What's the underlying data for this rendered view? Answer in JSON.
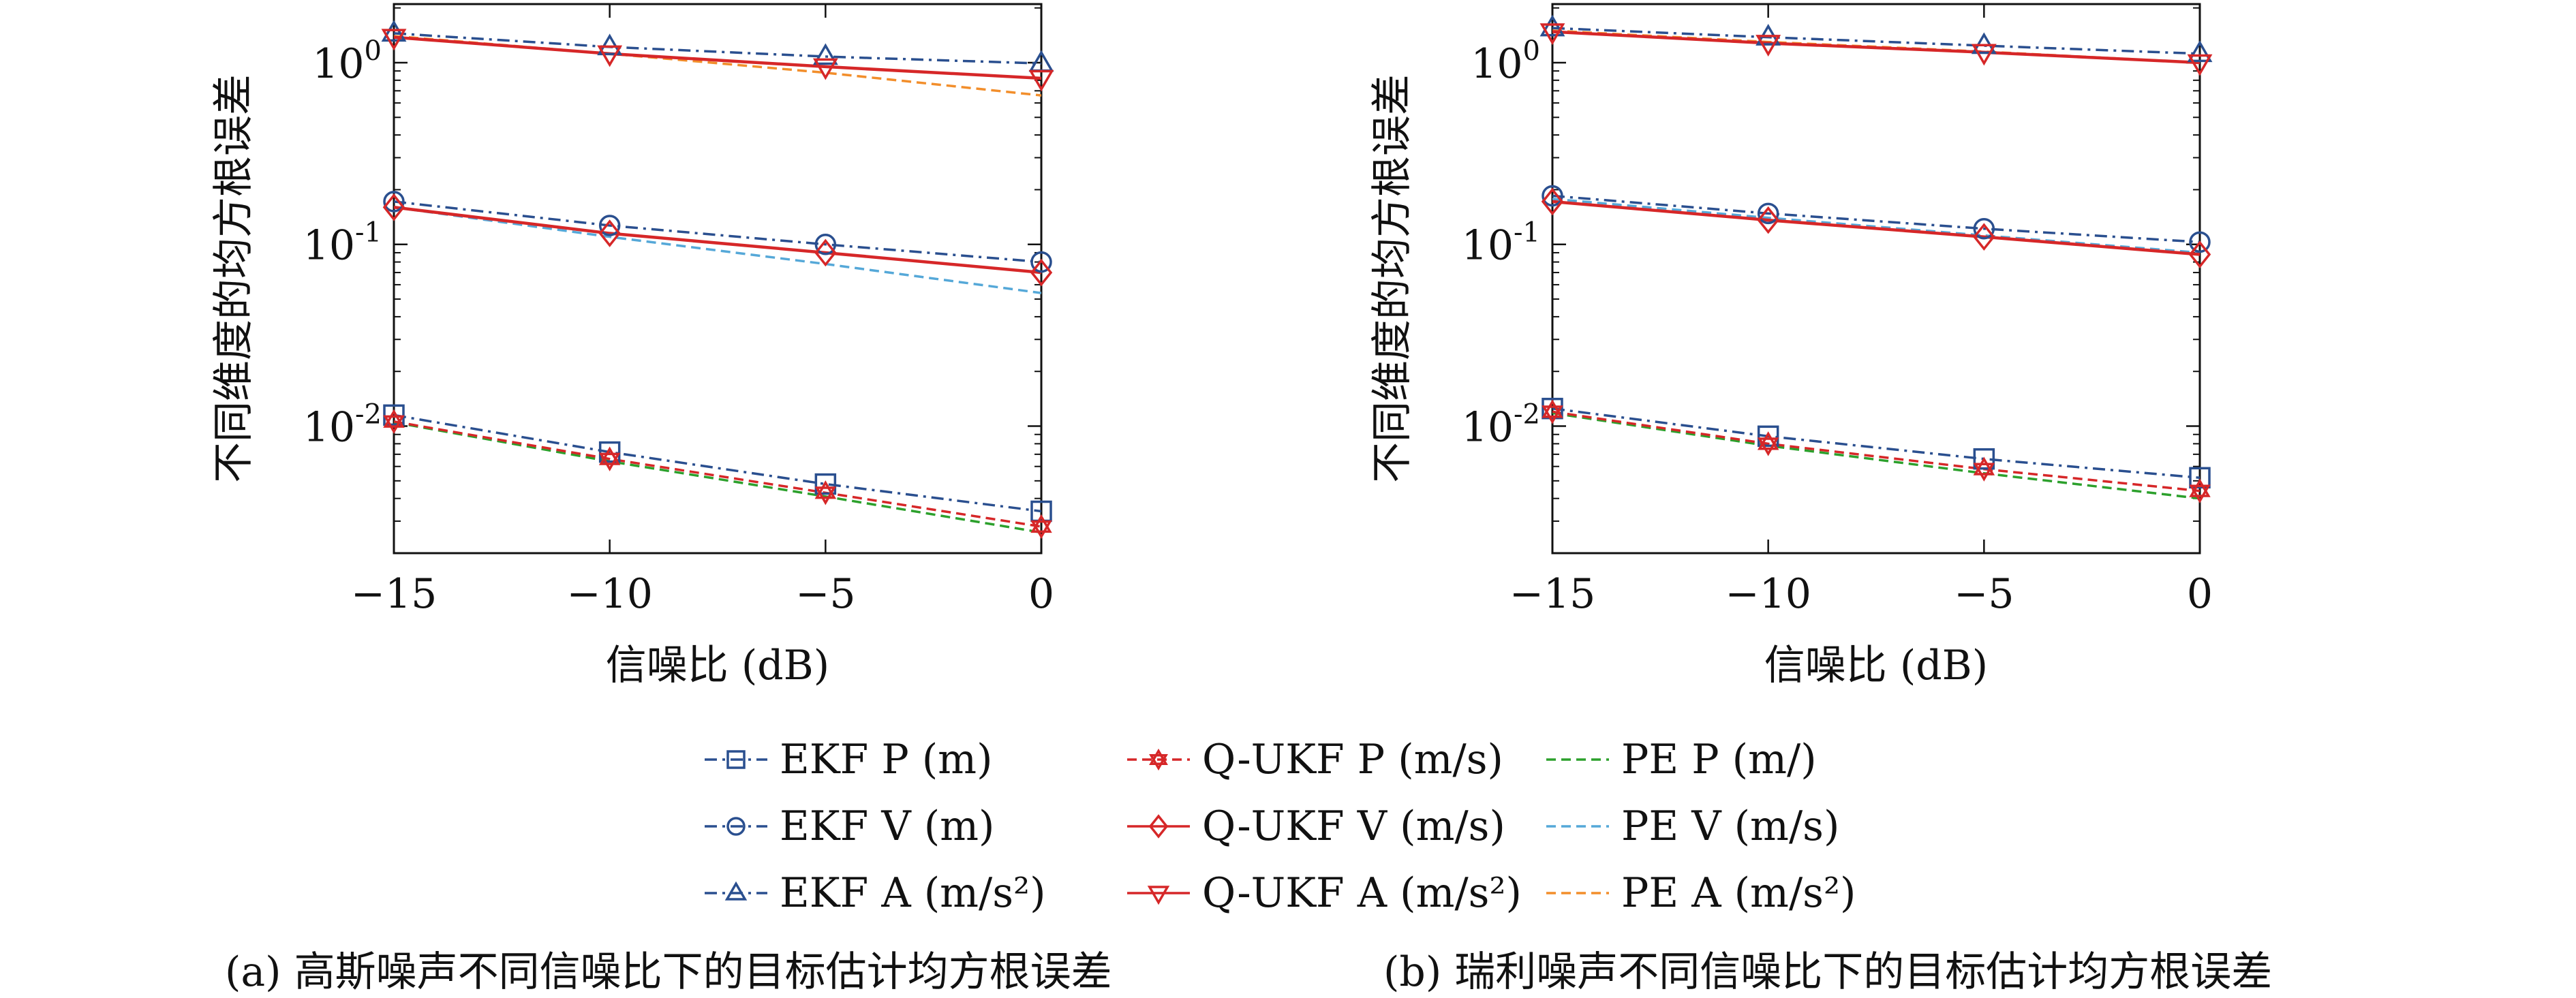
{
  "chart_data": [
    {
      "type": "line",
      "panel": "a",
      "caption": "(a) 高斯噪声不同信噪比下的目标估计均方根误差",
      "xlabel": "信噪比 (dB)",
      "ylabel": "不同维度的均方根误差",
      "yscale": "log",
      "xlim": [
        -15,
        0
      ],
      "ylim": [
        0.002,
        2.1
      ],
      "xticks": [
        -15,
        -10,
        -5,
        0
      ],
      "xtick_labels": [
        "−15",
        "−10",
        "−5",
        "0"
      ],
      "yticks": [
        0.01,
        0.1,
        1
      ],
      "ytick_labels": [
        [
          "10",
          "-2"
        ],
        [
          "10",
          "-1"
        ],
        [
          "10",
          "0"
        ]
      ],
      "grid": false,
      "x": [
        -15,
        -10,
        -5,
        0
      ],
      "series": [
        {
          "name": "EKF P (m)",
          "color": "#2a4f8f",
          "dash": "dashdot",
          "marker": "square",
          "values": [
            0.0115,
            0.0072,
            0.0048,
            0.0034
          ]
        },
        {
          "name": "EKF V (m)",
          "color": "#2a4f8f",
          "dash": "dashdot",
          "marker": "circle",
          "values": [
            0.172,
            0.127,
            0.1,
            0.08
          ]
        },
        {
          "name": "EKF A (m/s²)",
          "color": "#2a4f8f",
          "dash": "dashdot",
          "marker": "triangle-up",
          "values": [
            1.45,
            1.22,
            1.08,
            0.99
          ]
        },
        {
          "name": "Q-UKF P (m/s)",
          "color": "#d62728",
          "dash": "dash",
          "marker": "hexagram",
          "values": [
            0.0106,
            0.0066,
            0.0043,
            0.0028
          ]
        },
        {
          "name": "Q-UKF V (m/s)",
          "color": "#d62728",
          "dash": "solid",
          "marker": "diamond",
          "values": [
            0.16,
            0.115,
            0.09,
            0.07
          ]
        },
        {
          "name": "Q-UKF A (m/s²)",
          "color": "#d62728",
          "dash": "solid",
          "marker": "triangle-down",
          "values": [
            1.38,
            1.12,
            0.95,
            0.82
          ]
        },
        {
          "name": "PE P (m/)",
          "color": "#2ca02c",
          "dash": "dash",
          "marker": "none",
          "values": [
            0.0105,
            0.0064,
            0.0041,
            0.0026
          ]
        },
        {
          "name": "PE V (m/s)",
          "color": "#55a8d8",
          "dash": "dash",
          "marker": "none",
          "values": [
            0.16,
            0.11,
            0.078,
            0.054
          ]
        },
        {
          "name": "PE A (m/s²)",
          "color": "#f28e2b",
          "dash": "dash",
          "marker": "none",
          "values": [
            1.4,
            1.12,
            0.88,
            0.66
          ]
        }
      ]
    },
    {
      "type": "line",
      "panel": "b",
      "caption": "(b) 瑞利噪声不同信噪比下的目标估计均方根误差",
      "xlabel": "信噪比 (dB)",
      "ylabel": "不同维度的均方根误差",
      "yscale": "log",
      "xlim": [
        -15,
        0
      ],
      "ylim": [
        0.002,
        2.1
      ],
      "xticks": [
        -15,
        -10,
        -5,
        0
      ],
      "xtick_labels": [
        "−15",
        "−10",
        "−5",
        "0"
      ],
      "yticks": [
        0.01,
        0.1,
        1
      ],
      "ytick_labels": [
        [
          "10",
          "-2"
        ],
        [
          "10",
          "-1"
        ],
        [
          "10",
          "0"
        ]
      ],
      "grid": false,
      "x": [
        -15,
        -10,
        -5,
        0
      ],
      "series": [
        {
          "name": "EKF P (m)",
          "color": "#2a4f8f",
          "dash": "dashdot",
          "marker": "square",
          "values": [
            0.0125,
            0.0088,
            0.0066,
            0.0052
          ]
        },
        {
          "name": "EKF V (m)",
          "color": "#2a4f8f",
          "dash": "dashdot",
          "marker": "circle",
          "values": [
            0.185,
            0.148,
            0.122,
            0.103
          ]
        },
        {
          "name": "EKF A (m/s²)",
          "color": "#2a4f8f",
          "dash": "dashdot",
          "marker": "triangle-up",
          "values": [
            1.55,
            1.38,
            1.24,
            1.12
          ]
        },
        {
          "name": "Q-UKF P (m/s)",
          "color": "#d62728",
          "dash": "dash",
          "marker": "hexagram",
          "values": [
            0.012,
            0.008,
            0.0058,
            0.0044
          ]
        },
        {
          "name": "Q-UKF V (m/s)",
          "color": "#d62728",
          "dash": "solid",
          "marker": "diamond",
          "values": [
            0.172,
            0.136,
            0.11,
            0.088
          ]
        },
        {
          "name": "Q-UKF A (m/s²)",
          "color": "#d62728",
          "dash": "solid",
          "marker": "triangle-down",
          "values": [
            1.48,
            1.28,
            1.14,
            1.0
          ]
        },
        {
          "name": "PE P (m/)",
          "color": "#2ca02c",
          "dash": "dash",
          "marker": "none",
          "values": [
            0.0118,
            0.0078,
            0.0055,
            0.004
          ]
        },
        {
          "name": "PE V (m/s)",
          "color": "#55a8d8",
          "dash": "dash",
          "marker": "none",
          "values": [
            0.178,
            0.14,
            0.112,
            0.09
          ]
        },
        {
          "name": "PE A (m/s²)",
          "color": "#f28e2b",
          "dash": "dash",
          "marker": "none",
          "values": [
            1.5,
            1.3,
            1.15,
            1.0
          ]
        }
      ]
    }
  ]
}
